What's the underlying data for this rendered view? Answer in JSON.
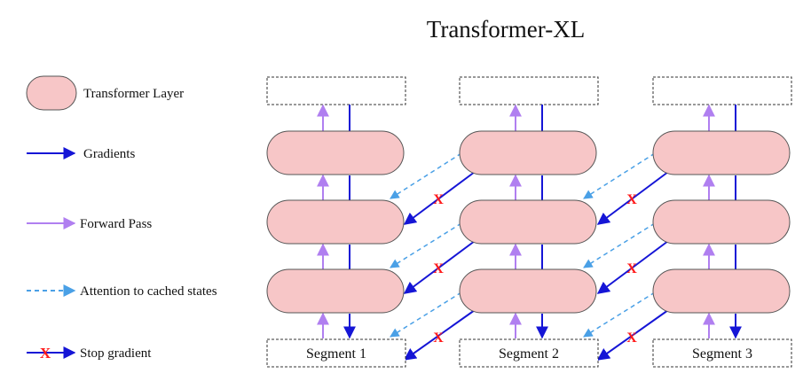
{
  "title": "Transformer-XL",
  "legend": {
    "layer": "Transformer Layer",
    "gradients": "Gradients",
    "forward": "Forward Pass",
    "attention": "Attention to cached states",
    "stop": "Stop gradient"
  },
  "segments": [
    "Segment 1",
    "Segment 2",
    "Segment 3"
  ],
  "colors": {
    "layer_fill": "#f7c6c7",
    "layer_stroke": "#555555",
    "gradient": "#1515d6",
    "forward": "#b07ff0",
    "attention": "#4aa0e6",
    "stop": "#ff1a1a"
  }
}
